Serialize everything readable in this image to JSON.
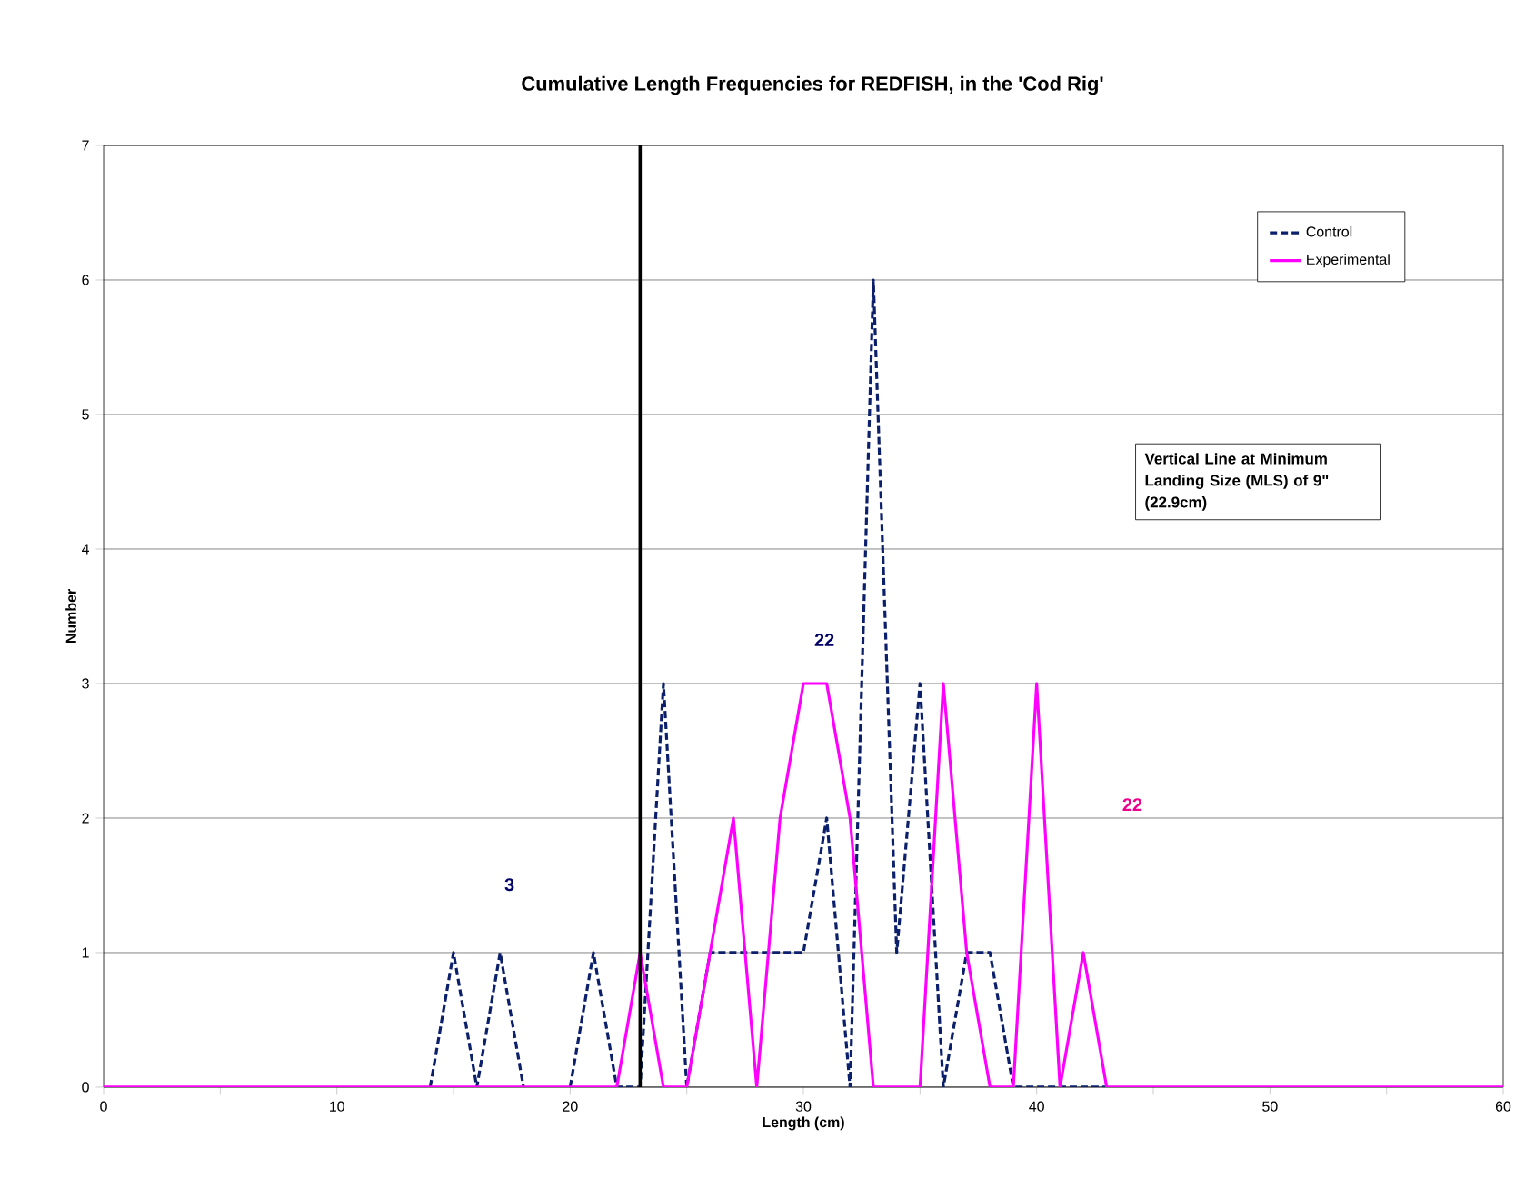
{
  "chart_data": {
    "type": "line",
    "title": "Cumulative Length Frequencies for REDFISH, in the 'Cod Rig'",
    "xlabel": "Length (cm)",
    "ylabel": "Number",
    "x": [
      0,
      1,
      2,
      3,
      4,
      5,
      6,
      7,
      8,
      9,
      10,
      11,
      12,
      13,
      14,
      15,
      16,
      17,
      18,
      19,
      20,
      21,
      22,
      23,
      24,
      25,
      26,
      27,
      28,
      29,
      30,
      31,
      32,
      33,
      34,
      35,
      36,
      37,
      38,
      39,
      40,
      41,
      42,
      43,
      44,
      45,
      46,
      47,
      48,
      49,
      50,
      51,
      52,
      53,
      54,
      55,
      56,
      57,
      58,
      59,
      60
    ],
    "series": [
      {
        "name": "Control",
        "color": "#0b1f6b",
        "line_style": "dashed",
        "values": [
          null,
          null,
          null,
          null,
          null,
          null,
          null,
          null,
          null,
          null,
          null,
          null,
          null,
          null,
          0,
          1,
          0,
          1,
          0,
          null,
          0,
          1,
          0,
          0,
          3,
          0,
          1,
          1,
          1,
          1,
          1,
          2,
          0,
          6,
          1,
          3,
          0,
          1,
          1,
          0,
          0,
          0,
          0,
          0,
          null,
          null,
          null,
          null,
          null,
          null,
          null,
          null,
          null,
          null,
          null,
          null,
          null,
          null,
          null,
          null,
          null
        ]
      },
      {
        "name": "Experimental",
        "color": "#ff00ff",
        "line_style": "solid",
        "values": [
          0,
          0,
          0,
          0,
          0,
          0,
          0,
          0,
          0,
          0,
          0,
          0,
          0,
          0,
          0,
          0,
          0,
          0,
          0,
          0,
          0,
          0,
          0,
          1,
          0,
          0,
          1,
          2,
          0,
          2,
          3,
          3,
          2,
          0,
          0,
          0,
          3,
          1,
          0,
          0,
          3,
          0,
          1,
          0,
          0,
          0,
          0,
          0,
          0,
          0,
          0,
          0,
          0,
          0,
          0,
          0,
          0,
          0,
          0,
          0,
          0
        ]
      }
    ],
    "xlim": [
      0,
      60
    ],
    "xticks": [
      0,
      {
        "value": 5,
        "label": null
      },
      10,
      {
        "value": 15,
        "label": null
      },
      20,
      {
        "value": 25,
        "label": null
      },
      30,
      {
        "value": 35,
        "label": null
      },
      40,
      {
        "value": 45,
        "label": null
      },
      50,
      {
        "value": 55,
        "label": null
      },
      60
    ],
    "ylim": [
      0,
      7
    ],
    "yticks": [
      0,
      1,
      2,
      3,
      4,
      5,
      6,
      7
    ],
    "grid": "y",
    "legend": "top right",
    "marker": "none",
    "ref_lines": [
      {
        "axis": "x",
        "value": 23,
        "color": "#000000"
      }
    ],
    "annotations": [
      "3",
      "22",
      "22",
      "Vertical Line at Minimum Landing Size (MLS) of 9\" (22.9cm)"
    ]
  }
}
